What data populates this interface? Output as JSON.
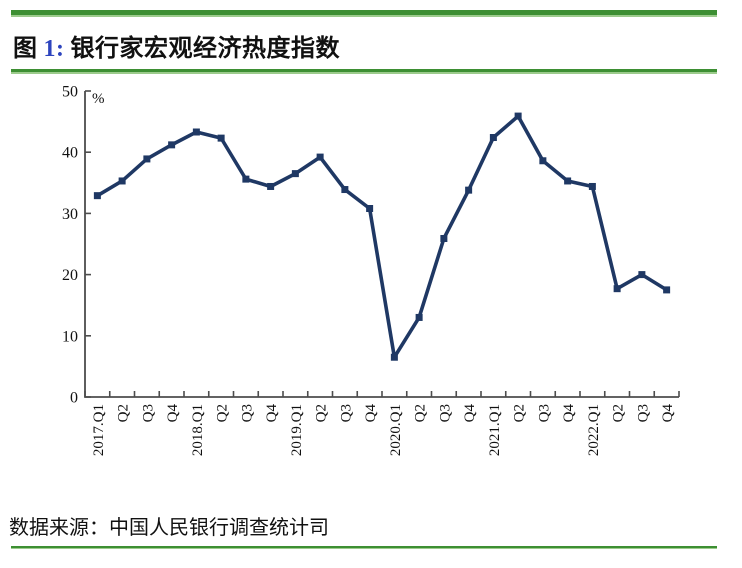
{
  "header": {
    "figure_label": "图",
    "figure_number": "1:",
    "title_text": "银行家宏观经济热度指数"
  },
  "footer": {
    "source": "数据来源：中国人民银行调查统计司"
  },
  "colors": {
    "accent_green": "#3D8F33",
    "accent_green_light": "#9CCB8C",
    "line_navy": "#1F3864",
    "figure_number_blue": "#2D44BE",
    "axis_gray": "#4D4D4D",
    "text_black": "#111111"
  },
  "chart_data": {
    "type": "line",
    "title": "银行家宏观经济热度指数",
    "unit_label": "%",
    "xlabel": "",
    "ylabel": "%",
    "ylim": [
      0,
      50
    ],
    "yticks": [
      0,
      10,
      20,
      30,
      40,
      50
    ],
    "grid": false,
    "legend": "none",
    "marker": "square",
    "categories": [
      "2017.Q1",
      "Q2",
      "Q3",
      "Q4",
      "2018.Q1",
      "Q2",
      "Q3",
      "Q4",
      "2019.Q1",
      "Q2",
      "Q3",
      "Q4",
      "2020.Q1",
      "Q2",
      "Q3",
      "Q4",
      "2021.Q1",
      "Q2",
      "Q3",
      "Q4",
      "2022.Q1",
      "Q2",
      "Q3",
      "Q4"
    ],
    "values": [
      32.9,
      35.3,
      38.9,
      41.2,
      43.3,
      42.3,
      35.6,
      34.4,
      36.5,
      39.2,
      33.9,
      30.8,
      6.5,
      13.0,
      25.9,
      33.8,
      42.4,
      45.9,
      38.6,
      35.3,
      34.4,
      17.7,
      20.0,
      17.5
    ]
  }
}
